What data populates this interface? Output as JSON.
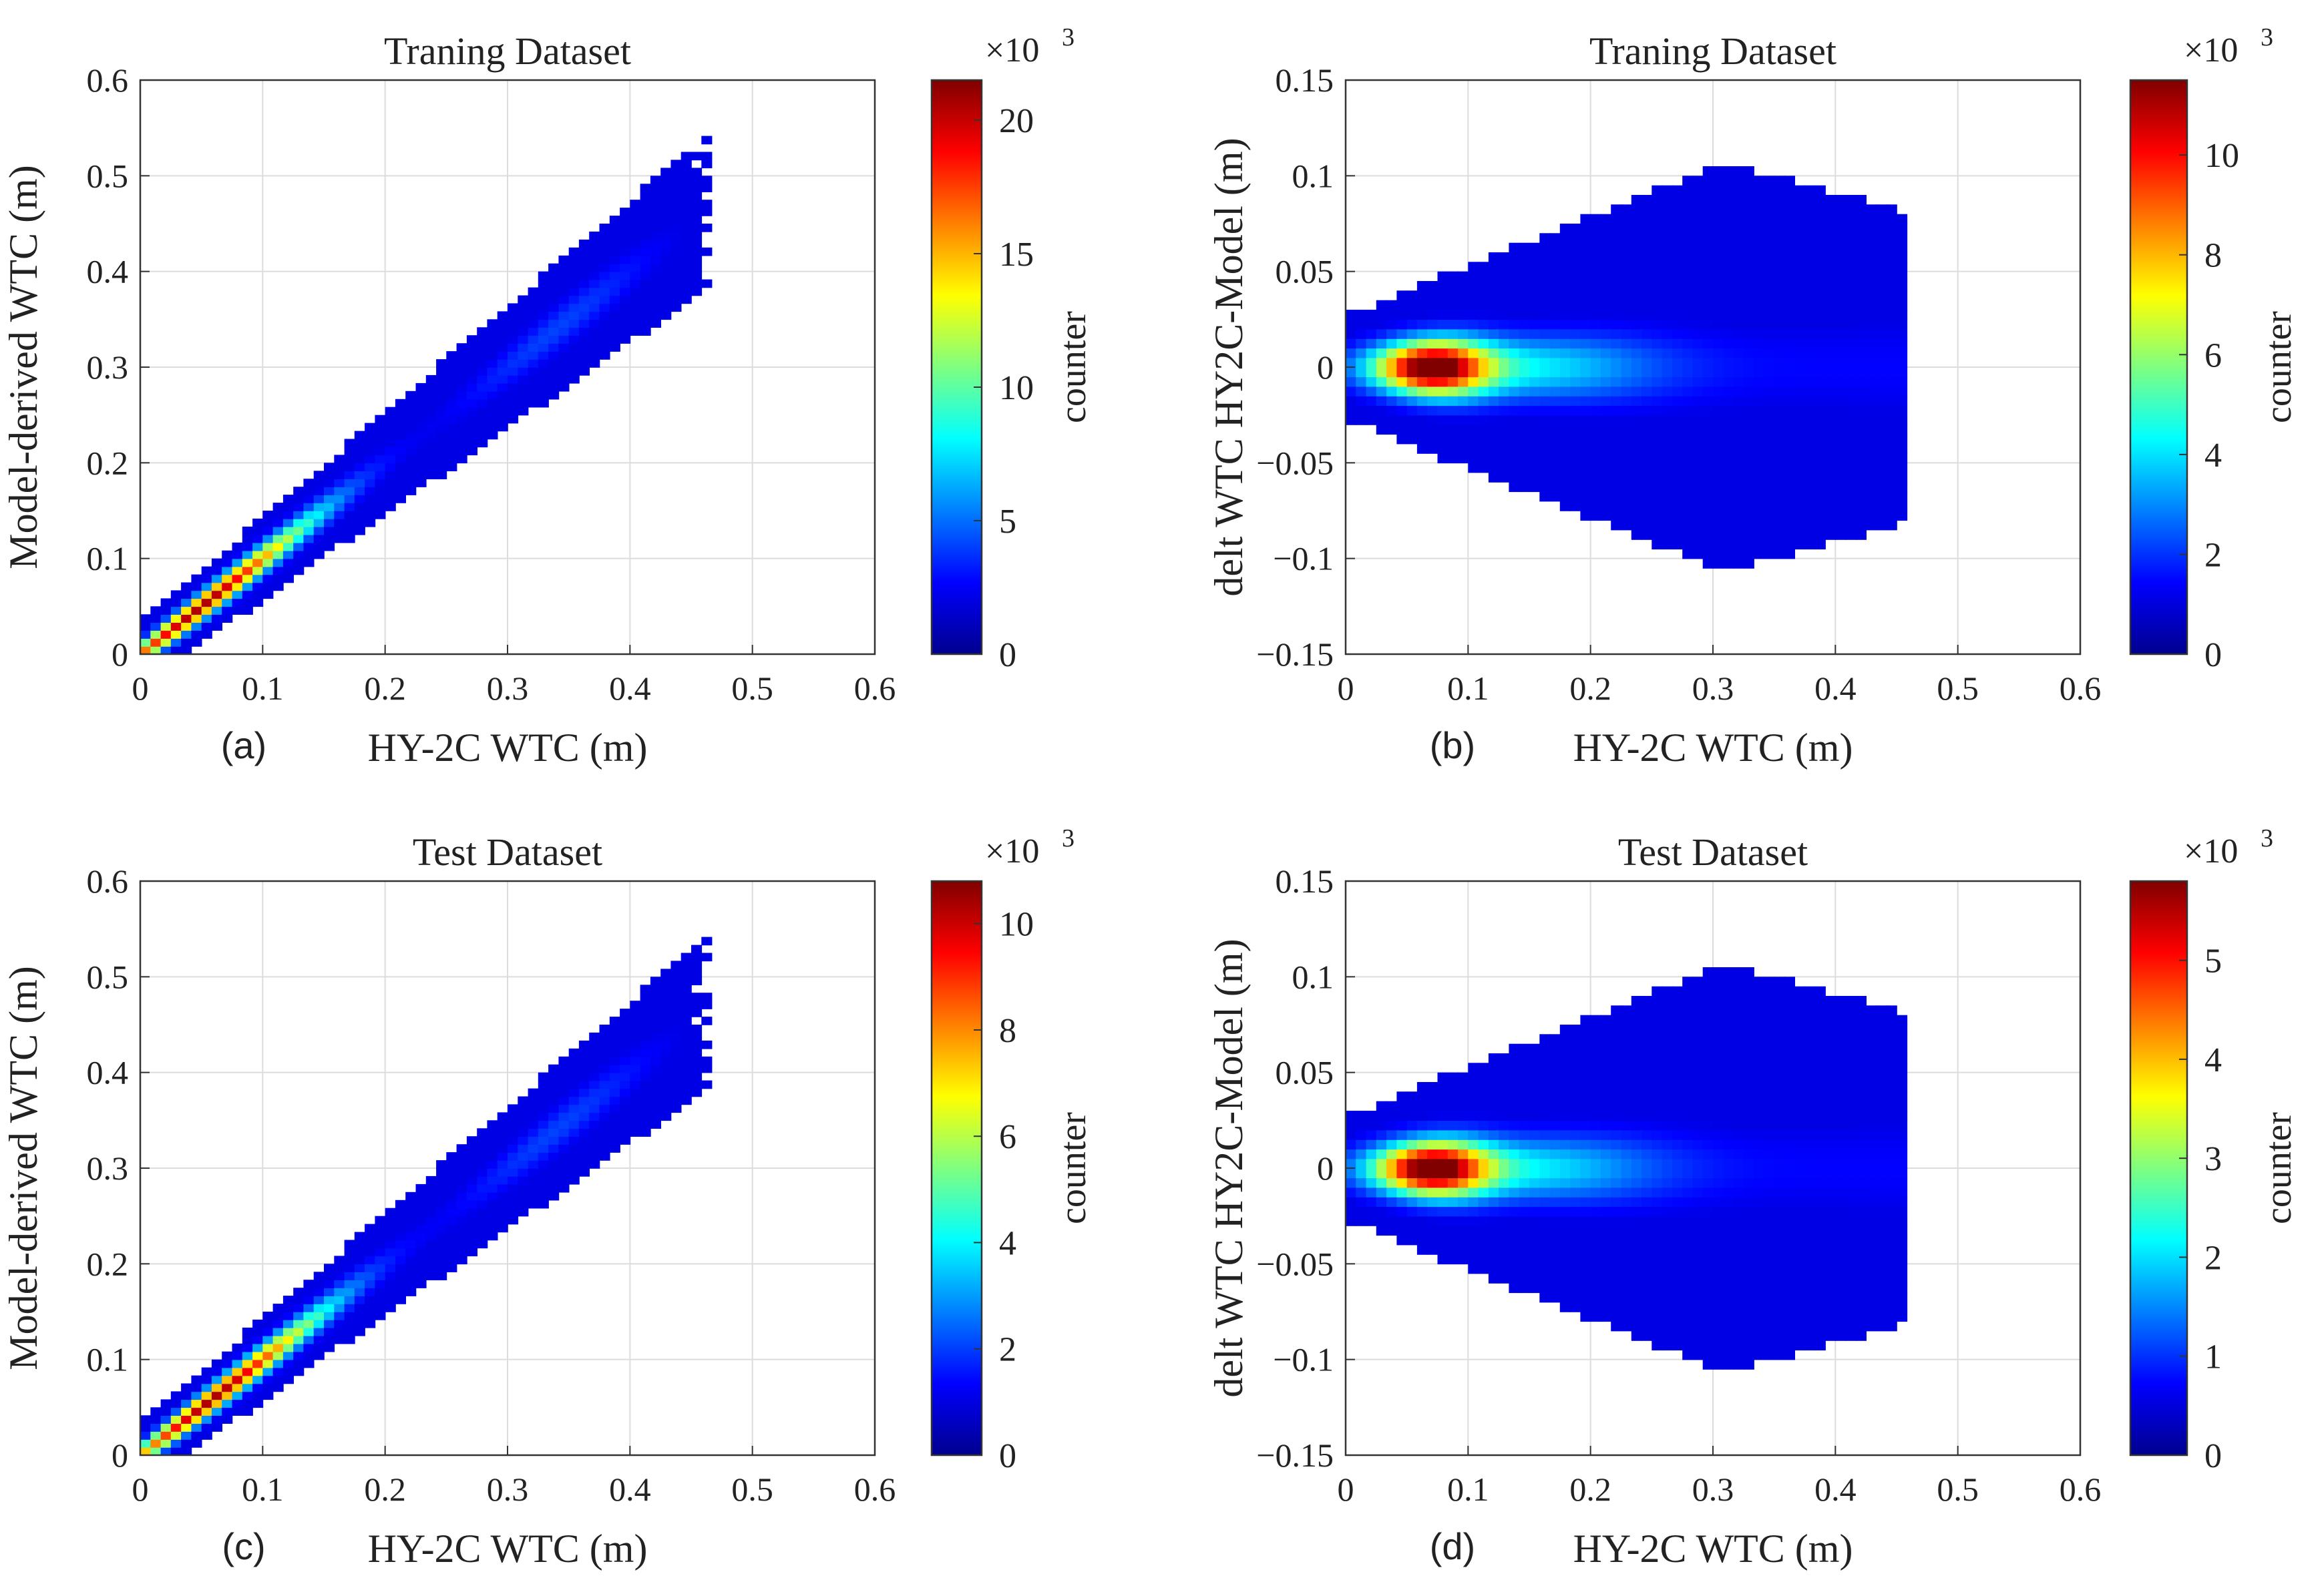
{
  "chart_data": [
    {
      "type": "heatmap",
      "panel_label": "(a)",
      "title": "Traning Dataset",
      "xlabel": "HY-2C WTC (m)",
      "ylabel": "Model-derived WTC (m)",
      "xlim": [
        0,
        0.6
      ],
      "ylim": [
        0,
        0.6
      ],
      "xticks": [
        "0",
        "0.1",
        "0.2",
        "0.3",
        "0.4",
        "0.5",
        "0.6"
      ],
      "yticks": [
        "0",
        "0.1",
        "0.2",
        "0.3",
        "0.4",
        "0.5",
        "0.6"
      ],
      "grid": true,
      "density": {
        "kind": "diagonal",
        "start": [
          0.04,
          0.04
        ],
        "end": [
          0.45,
          0.45
        ],
        "peak_at": 0.05,
        "width_y": 0.035
      },
      "colorbar": {
        "label": "counter",
        "multiplier": "×10",
        "exponent": "3",
        "ticks": [
          "0",
          "5",
          "10",
          "15",
          "20"
        ],
        "tick_values": [
          0,
          5,
          10,
          15,
          20
        ],
        "max": 21.5,
        "colormap": "jet"
      }
    },
    {
      "type": "heatmap",
      "panel_label": "(b)",
      "title": "Traning Dataset",
      "xlabel": "HY-2C WTC (m)",
      "ylabel": "delt WTC HY2C-Model (m)",
      "xlim": [
        0,
        0.6
      ],
      "ylim": [
        -0.15,
        0.15
      ],
      "xticks": [
        "0",
        "0.1",
        "0.2",
        "0.3",
        "0.4",
        "0.5",
        "0.6"
      ],
      "yticks": [
        "−0.15",
        "−0.1",
        "−0.05",
        "0",
        "0.05",
        "0.1",
        "0.15"
      ],
      "grid": true,
      "density": {
        "kind": "horizontal",
        "x_start": 0.0,
        "x_end": 0.45,
        "peak_at": 0.07,
        "center_y": 0.0,
        "spread_y": 0.06
      },
      "colorbar": {
        "label": "counter",
        "multiplier": "×10",
        "exponent": "3",
        "ticks": [
          "0",
          "2",
          "4",
          "6",
          "8",
          "10"
        ],
        "tick_values": [
          0,
          2,
          4,
          6,
          8,
          10
        ],
        "max": 11.5,
        "colormap": "jet"
      }
    },
    {
      "type": "heatmap",
      "panel_label": "(c)",
      "title": "Test Dataset",
      "xlabel": "HY-2C WTC (m)",
      "ylabel": "Model-derived WTC (m)",
      "xlim": [
        0,
        0.6
      ],
      "ylim": [
        0,
        0.6
      ],
      "xticks": [
        "0",
        "0.1",
        "0.2",
        "0.3",
        "0.4",
        "0.5",
        "0.6"
      ],
      "yticks": [
        "0",
        "0.1",
        "0.2",
        "0.3",
        "0.4",
        "0.5",
        "0.6"
      ],
      "grid": true,
      "density": {
        "kind": "diagonal",
        "start": [
          0.04,
          0.04
        ],
        "end": [
          0.45,
          0.45
        ],
        "peak_at": 0.06,
        "width_y": 0.035
      },
      "colorbar": {
        "label": "counter",
        "multiplier": "×10",
        "exponent": "3",
        "ticks": [
          "0",
          "2",
          "4",
          "6",
          "8",
          "10"
        ],
        "tick_values": [
          0,
          2,
          4,
          6,
          8,
          10
        ],
        "max": 10.8,
        "colormap": "jet"
      }
    },
    {
      "type": "heatmap",
      "panel_label": "(d)",
      "title": "Test Dataset",
      "xlabel": "HY-2C WTC (m)",
      "ylabel": "delt WTC HY2C-Model (m)",
      "xlim": [
        0,
        0.6
      ],
      "ylim": [
        -0.15,
        0.15
      ],
      "xticks": [
        "0",
        "0.1",
        "0.2",
        "0.3",
        "0.4",
        "0.5",
        "0.6"
      ],
      "yticks": [
        "−0.15",
        "−0.1",
        "−0.05",
        "0",
        "0.05",
        "0.1",
        "0.15"
      ],
      "grid": true,
      "density": {
        "kind": "horizontal",
        "x_start": 0.0,
        "x_end": 0.45,
        "peak_at": 0.07,
        "center_y": 0.0,
        "spread_y": 0.06
      },
      "colorbar": {
        "label": "counter",
        "multiplier": "×10",
        "exponent": "3",
        "ticks": [
          "0",
          "1",
          "2",
          "3",
          "4",
          "5"
        ],
        "tick_values": [
          0,
          1,
          2,
          3,
          4,
          5
        ],
        "max": 5.8,
        "colormap": "jet"
      }
    }
  ]
}
